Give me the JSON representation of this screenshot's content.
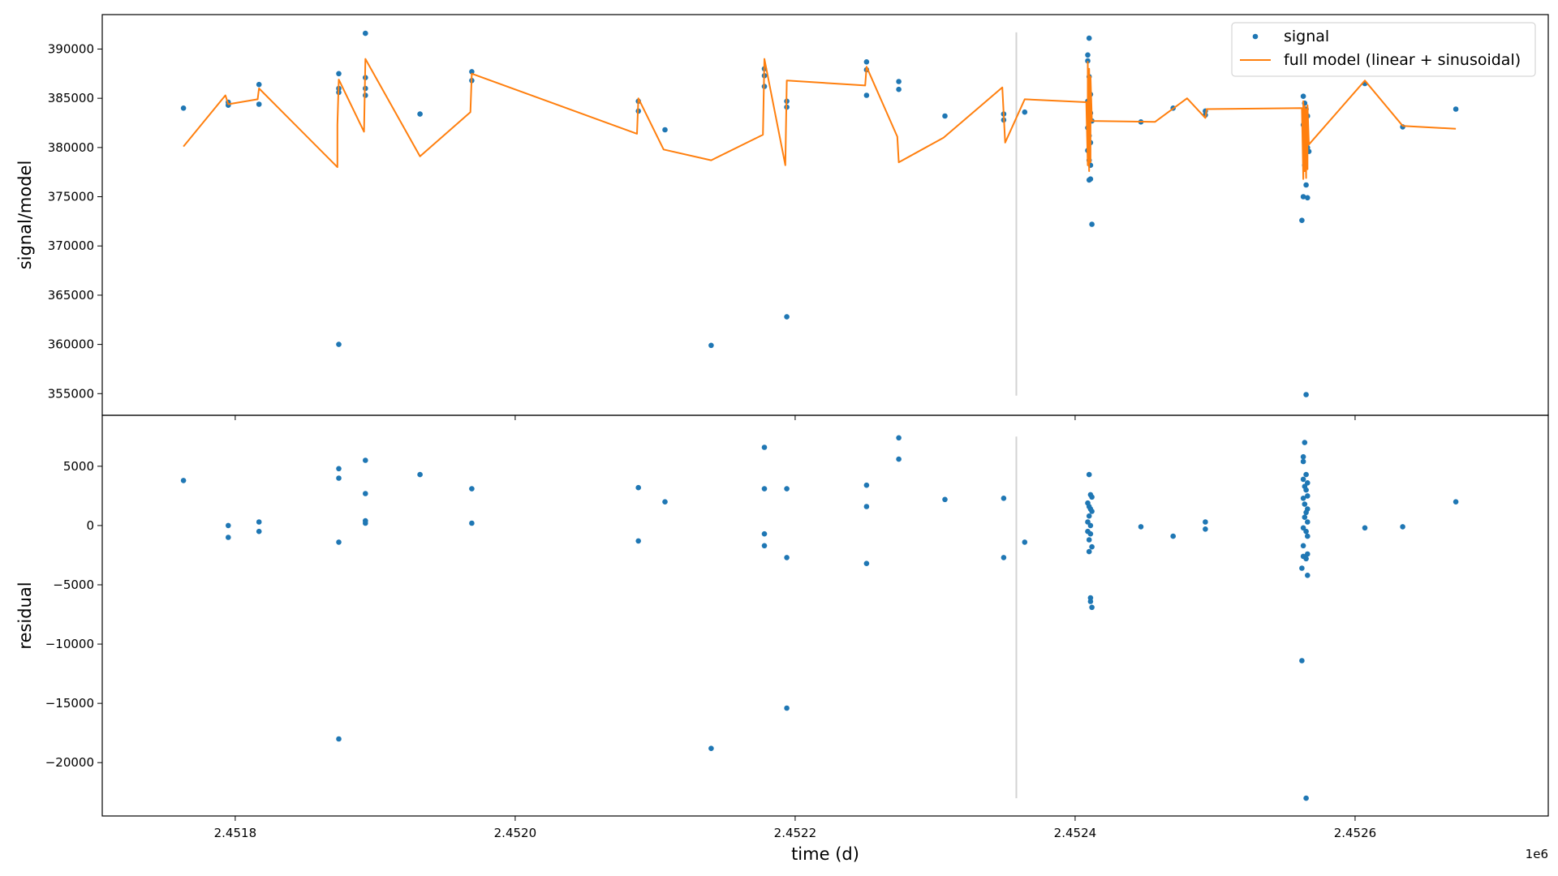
{
  "chart_data": [
    {
      "type": "scatter",
      "panel": "top",
      "ylabel": "signal/model",
      "ylim": [
        352800,
        393500
      ],
      "xlim": [
        2451705,
        2452738
      ],
      "yticks": [
        355000,
        360000,
        365000,
        370000,
        375000,
        380000,
        385000,
        390000
      ],
      "yticklabels": [
        "355000",
        "360000",
        "365000",
        "370000",
        "375000",
        "380000",
        "385000",
        "390000"
      ],
      "legend_position": "top-right",
      "vline": {
        "x": 2452358,
        "y_range": [
          354800,
          391700
        ],
        "color": "#d3d3d3"
      },
      "series": [
        {
          "name": "signal",
          "kind": "scatter",
          "color": "#1f77b4",
          "points": [
            [
              2451763,
              384000
            ],
            [
              2451795,
              384600
            ],
            [
              2451795,
              384300
            ],
            [
              2451817,
              386400
            ],
            [
              2451817,
              384400
            ],
            [
              2451874,
              387500
            ],
            [
              2451874,
              386000
            ],
            [
              2451874,
              385600
            ],
            [
              2451874,
              360000
            ],
            [
              2451893,
              391600
            ],
            [
              2451893,
              387100
            ],
            [
              2451893,
              386000
            ],
            [
              2451893,
              385300
            ],
            [
              2451932,
              383400
            ],
            [
              2451969,
              387700
            ],
            [
              2451969,
              386800
            ],
            [
              2452088,
              384700
            ],
            [
              2452088,
              383700
            ],
            [
              2452107,
              381800
            ],
            [
              2452140,
              359900
            ],
            [
              2452178,
              388000
            ],
            [
              2452178,
              387300
            ],
            [
              2452178,
              386200
            ],
            [
              2452194,
              384700
            ],
            [
              2452194,
              384100
            ],
            [
              2452194,
              362800
            ],
            [
              2452251,
              388700
            ],
            [
              2452251,
              387900
            ],
            [
              2452251,
              385300
            ],
            [
              2452274,
              386700
            ],
            [
              2452274,
              385900
            ],
            [
              2452307,
              383200
            ],
            [
              2452349,
              383400
            ],
            [
              2452349,
              382800
            ],
            [
              2452364,
              383600
            ],
            [
              2452410,
              391100
            ],
            [
              2452409,
              389400
            ],
            [
              2452409,
              388800
            ],
            [
              2452410,
              387200
            ],
            [
              2452411,
              385400
            ],
            [
              2452409,
              384700
            ],
            [
              2452410,
              384100
            ],
            [
              2452411,
              383500
            ],
            [
              2452412,
              382700
            ],
            [
              2452409,
              382000
            ],
            [
              2452410,
              381200
            ],
            [
              2452411,
              380500
            ],
            [
              2452409,
              379700
            ],
            [
              2452410,
              378700
            ],
            [
              2452411,
              378200
            ],
            [
              2452410,
              376700
            ],
            [
              2452411,
              376800
            ],
            [
              2452412,
              372200
            ],
            [
              2452447,
              382600
            ],
            [
              2452470,
              384000
            ],
            [
              2452493,
              383700
            ],
            [
              2452493,
              383300
            ],
            [
              2452563,
              385200
            ],
            [
              2452564,
              384500
            ],
            [
              2452565,
              383900
            ],
            [
              2452566,
              383200
            ],
            [
              2452563,
              382300
            ],
            [
              2452564,
              381700
            ],
            [
              2452565,
              380800
            ],
            [
              2452566,
              380000
            ],
            [
              2452567,
              379600
            ],
            [
              2452564,
              378200
            ],
            [
              2452565,
              376200
            ],
            [
              2452563,
              375000
            ],
            [
              2452566,
              374900
            ],
            [
              2452562,
              372600
            ],
            [
              2452565,
              354900
            ],
            [
              2452607,
              386500
            ],
            [
              2452634,
              382100
            ],
            [
              2452672,
              383900
            ]
          ]
        },
        {
          "name": "full model (linear + sinusoidal)",
          "kind": "line",
          "color": "#ff7f0e",
          "points": [
            [
              2451763,
              380100
            ],
            [
              2451793,
              385300
            ],
            [
              2451795,
              384400
            ],
            [
              2451816,
              384900
            ],
            [
              2451817,
              386000
            ],
            [
              2451873,
              378000
            ],
            [
              2451873,
              382300
            ],
            [
              2451874,
              386900
            ],
            [
              2451892,
              381600
            ],
            [
              2451893,
              389000
            ],
            [
              2451932,
              379100
            ],
            [
              2451968,
              383600
            ],
            [
              2451969,
              387500
            ],
            [
              2452087,
              381400
            ],
            [
              2452088,
              385000
            ],
            [
              2452106,
              379800
            ],
            [
              2452140,
              378700
            ],
            [
              2452177,
              381300
            ],
            [
              2452178,
              389000
            ],
            [
              2452193,
              378200
            ],
            [
              2452194,
              386800
            ],
            [
              2452250,
              386300
            ],
            [
              2452251,
              388200
            ],
            [
              2452273,
              381100
            ],
            [
              2452274,
              378500
            ],
            [
              2452306,
              381000
            ],
            [
              2452348,
              386100
            ],
            [
              2452350,
              380500
            ],
            [
              2452364,
              384900
            ],
            [
              2452408,
              384600
            ],
            [
              2452409,
              378200
            ],
            [
              2452409,
              388700
            ],
            [
              2452410,
              377600
            ],
            [
              2452410,
              388000
            ],
            [
              2452411,
              378500
            ],
            [
              2452411,
              387200
            ],
            [
              2452412,
              382700
            ],
            [
              2452457,
              382600
            ],
            [
              2452480,
              385000
            ],
            [
              2452493,
              383000
            ],
            [
              2452494,
              383900
            ],
            [
              2452562,
              384000
            ],
            [
              2452563,
              376800
            ],
            [
              2452563,
              384700
            ],
            [
              2452564,
              377600
            ],
            [
              2452564,
              384200
            ],
            [
              2452565,
              376900
            ],
            [
              2452565,
              383900
            ],
            [
              2452566,
              377800
            ],
            [
              2452566,
              384300
            ],
            [
              2452567,
              380300
            ],
            [
              2452607,
              386800
            ],
            [
              2452634,
              382200
            ],
            [
              2452672,
              381900
            ]
          ]
        }
      ]
    },
    {
      "type": "scatter",
      "panel": "bottom",
      "ylabel": "residual",
      "xlabel": "time (d)",
      "x_offset_label": "1e6",
      "ylim": [
        -24500,
        9300
      ],
      "xlim": [
        2451705,
        2452738
      ],
      "yticks": [
        -20000,
        -15000,
        -10000,
        -5000,
        0,
        5000
      ],
      "yticklabels": [
        "−20000",
        "−15000",
        "−10000",
        "−5000",
        "0",
        "5000"
      ],
      "xticks": [
        2451800,
        2452000,
        2452200,
        2452400,
        2452600
      ],
      "xticklabels": [
        "2.4518",
        "2.4520",
        "2.4522",
        "2.4524",
        "2.4526"
      ],
      "vline": {
        "x": 2452358,
        "y_range": [
          -23000,
          7500
        ],
        "color": "#d3d3d3"
      },
      "series": [
        {
          "name": "residual",
          "kind": "scatter",
          "color": "#1f77b4",
          "points": [
            [
              2451763,
              3800
            ],
            [
              2451795,
              0
            ],
            [
              2451795,
              -1000
            ],
            [
              2451817,
              300
            ],
            [
              2451817,
              -500
            ],
            [
              2451874,
              4800
            ],
            [
              2451874,
              4000
            ],
            [
              2451874,
              -1400
            ],
            [
              2451874,
              -18000
            ],
            [
              2451893,
              5500
            ],
            [
              2451893,
              2700
            ],
            [
              2451893,
              400
            ],
            [
              2451893,
              200
            ],
            [
              2451932,
              4300
            ],
            [
              2451969,
              3100
            ],
            [
              2451969,
              200
            ],
            [
              2452088,
              3200
            ],
            [
              2452088,
              -1300
            ],
            [
              2452107,
              2000
            ],
            [
              2452140,
              -18800
            ],
            [
              2452178,
              6600
            ],
            [
              2452178,
              3100
            ],
            [
              2452178,
              -700
            ],
            [
              2452178,
              -1700
            ],
            [
              2452194,
              3100
            ],
            [
              2452194,
              -2700
            ],
            [
              2452194,
              -15400
            ],
            [
              2452251,
              3400
            ],
            [
              2452251,
              1600
            ],
            [
              2452251,
              -3200
            ],
            [
              2452274,
              7400
            ],
            [
              2452274,
              5600
            ],
            [
              2452307,
              2200
            ],
            [
              2452349,
              2300
            ],
            [
              2452349,
              -2700
            ],
            [
              2452364,
              -1400
            ],
            [
              2452410,
              4300
            ],
            [
              2452411,
              2600
            ],
            [
              2452412,
              2400
            ],
            [
              2452409,
              1900
            ],
            [
              2452410,
              1600
            ],
            [
              2452411,
              1400
            ],
            [
              2452412,
              1200
            ],
            [
              2452410,
              800
            ],
            [
              2452409,
              300
            ],
            [
              2452411,
              0
            ],
            [
              2452409,
              -500
            ],
            [
              2452411,
              -700
            ],
            [
              2452410,
              -1200
            ],
            [
              2452412,
              -1800
            ],
            [
              2452410,
              -2200
            ],
            [
              2452411,
              -6100
            ],
            [
              2452411,
              -6400
            ],
            [
              2452412,
              -6900
            ],
            [
              2452447,
              -100
            ],
            [
              2452470,
              -900
            ],
            [
              2452493,
              300
            ],
            [
              2452493,
              -300
            ],
            [
              2452564,
              7000
            ],
            [
              2452563,
              5800
            ],
            [
              2452563,
              5400
            ],
            [
              2452565,
              4300
            ],
            [
              2452563,
              3900
            ],
            [
              2452566,
              3600
            ],
            [
              2452564,
              3300
            ],
            [
              2452565,
              3000
            ],
            [
              2452566,
              2500
            ],
            [
              2452563,
              2300
            ],
            [
              2452564,
              1800
            ],
            [
              2452566,
              1400
            ],
            [
              2452565,
              1100
            ],
            [
              2452564,
              700
            ],
            [
              2452566,
              300
            ],
            [
              2452563,
              -200
            ],
            [
              2452565,
              -500
            ],
            [
              2452566,
              -900
            ],
            [
              2452563,
              -1700
            ],
            [
              2452566,
              -2400
            ],
            [
              2452563,
              -2600
            ],
            [
              2452565,
              -2800
            ],
            [
              2452562,
              -3600
            ],
            [
              2452566,
              -4200
            ],
            [
              2452562,
              -11400
            ],
            [
              2452565,
              -23000
            ],
            [
              2452607,
              -200
            ],
            [
              2452634,
              -100
            ],
            [
              2452672,
              2000
            ]
          ]
        }
      ]
    }
  ]
}
